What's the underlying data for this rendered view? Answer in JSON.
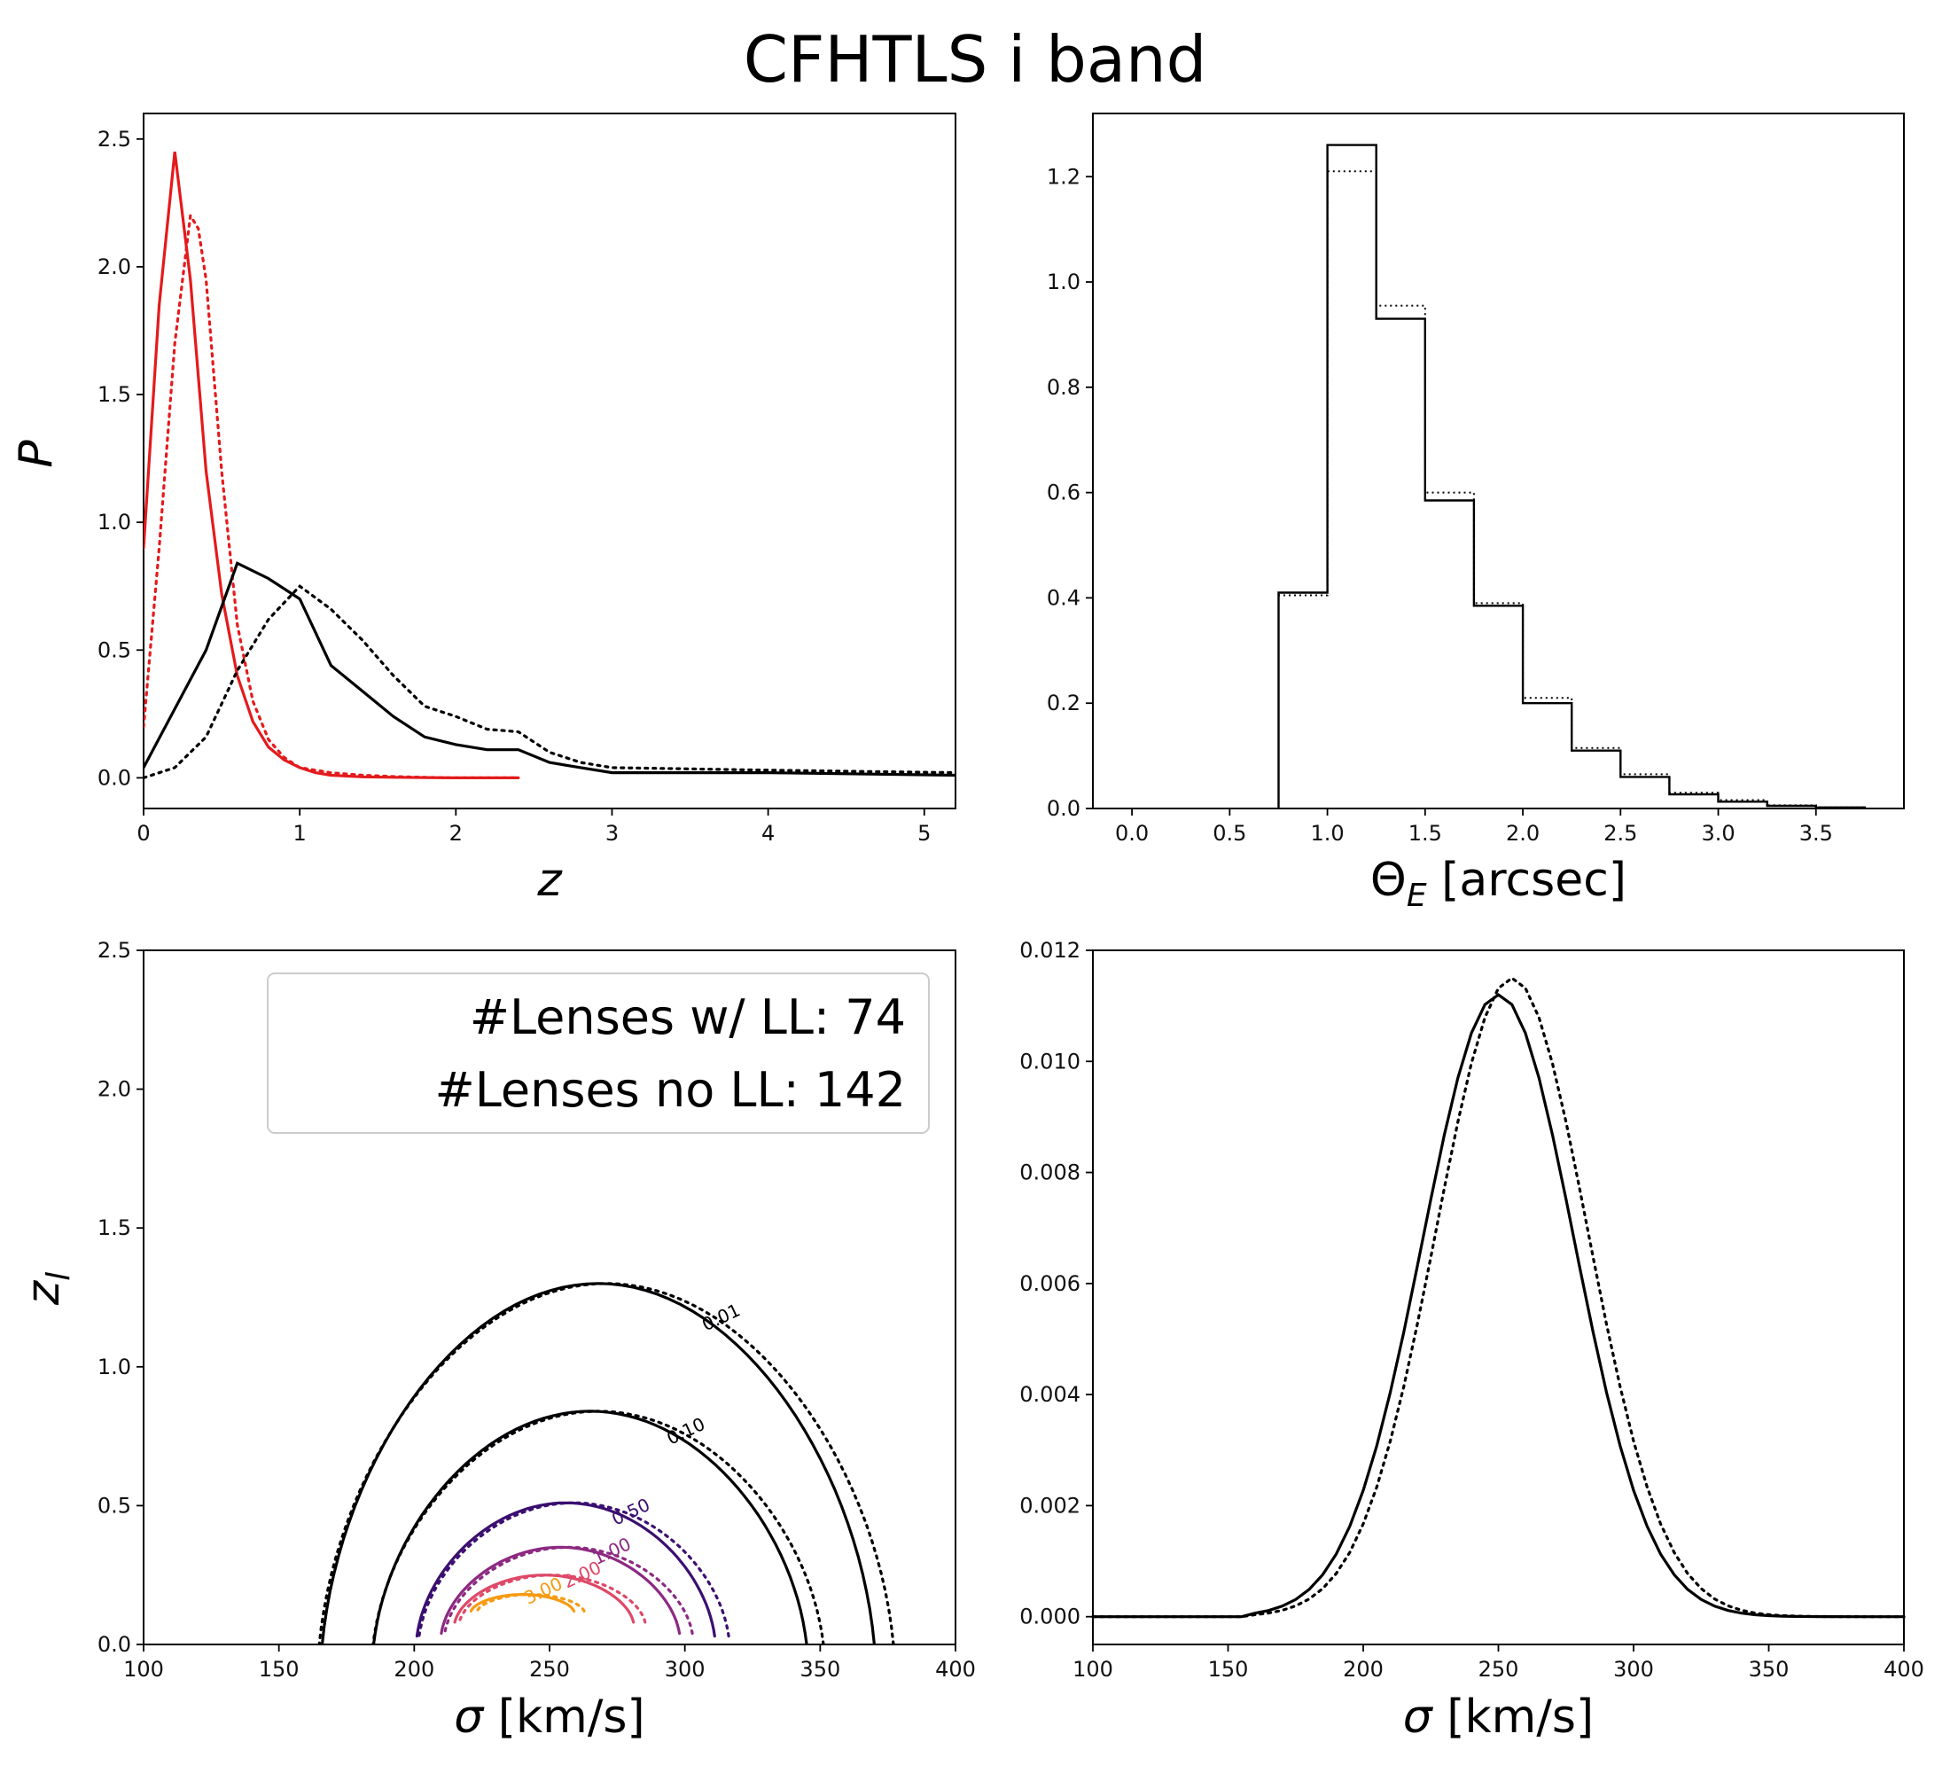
{
  "figure": {
    "title": "CFHTLS i band"
  },
  "chart_data": [
    {
      "type": "line",
      "panel": "top-left",
      "xlabel": "z",
      "ylabel": "P",
      "xlim": [
        0,
        5.2
      ],
      "ylim": [
        -0.12,
        2.6
      ],
      "xticks": [
        "0",
        "1",
        "2",
        "3",
        "4",
        "5"
      ],
      "yticks": [
        "0.0",
        "0.5",
        "1.0",
        "1.5",
        "2.0",
        "2.5"
      ],
      "series": [
        {
          "color": "#e41a1c",
          "style": "solid",
          "x": [
            0,
            0.1,
            0.2,
            0.3,
            0.4,
            0.5,
            0.6,
            0.7,
            0.8,
            0.9,
            1.0,
            1.1,
            1.2,
            1.4,
            1.6,
            1.8,
            2.0,
            2.2,
            2.4
          ],
          "y": [
            0.9,
            1.85,
            2.45,
            1.95,
            1.2,
            0.72,
            0.4,
            0.22,
            0.12,
            0.07,
            0.04,
            0.02,
            0.01,
            0.004,
            0.002,
            0.001,
            0,
            0,
            0
          ]
        },
        {
          "color": "#e41a1c",
          "style": "dotted",
          "x": [
            0,
            0.1,
            0.2,
            0.3,
            0.35,
            0.4,
            0.5,
            0.6,
            0.7,
            0.8,
            0.9,
            1.0,
            1.2,
            1.4,
            1.6,
            1.8,
            2.0,
            2.2,
            2.4
          ],
          "y": [
            0.2,
            0.9,
            1.7,
            2.2,
            2.15,
            1.95,
            1.2,
            0.6,
            0.3,
            0.15,
            0.08,
            0.04,
            0.02,
            0.01,
            0.005,
            0.002,
            0,
            0,
            0
          ]
        },
        {
          "color": "#000000",
          "style": "solid",
          "x": [
            0,
            0.2,
            0.4,
            0.6,
            0.8,
            1.0,
            1.2,
            1.4,
            1.6,
            1.8,
            2.0,
            2.2,
            2.4,
            2.6,
            2.8,
            3.0,
            4.0,
            5.2
          ],
          "y": [
            0.04,
            0.27,
            0.5,
            0.84,
            0.78,
            0.7,
            0.44,
            0.34,
            0.24,
            0.16,
            0.13,
            0.11,
            0.11,
            0.06,
            0.04,
            0.02,
            0.02,
            0.01
          ]
        },
        {
          "color": "#000000",
          "style": "dotted",
          "x": [
            0,
            0.2,
            0.4,
            0.6,
            0.8,
            1.0,
            1.2,
            1.4,
            1.6,
            1.8,
            2.0,
            2.2,
            2.4,
            2.6,
            2.8,
            3.0,
            4.0,
            5.2
          ],
          "y": [
            0.0,
            0.04,
            0.16,
            0.42,
            0.62,
            0.75,
            0.66,
            0.54,
            0.4,
            0.28,
            0.24,
            0.19,
            0.18,
            0.1,
            0.06,
            0.04,
            0.03,
            0.02
          ]
        }
      ]
    },
    {
      "type": "histogram",
      "panel": "top-right",
      "xlabel": "Θ_E [arcsec]",
      "ylabel": "",
      "xlim": [
        -0.2,
        3.95
      ],
      "ylim": [
        0,
        1.32
      ],
      "xticks": [
        "0.0",
        "0.5",
        "1.0",
        "1.5",
        "2.0",
        "2.5",
        "3.0",
        "3.5"
      ],
      "yticks": [
        "0.0",
        "0.2",
        "0.4",
        "0.6",
        "0.8",
        "1.0",
        "1.2"
      ],
      "bin_edges": [
        0.75,
        1.0,
        1.25,
        1.5,
        1.75,
        2.0,
        2.25,
        2.5,
        2.75,
        3.0,
        3.25,
        3.5,
        3.75
      ],
      "series": [
        {
          "style": "solid",
          "values": [
            0.41,
            1.26,
            0.93,
            0.585,
            0.385,
            0.2,
            0.11,
            0.06,
            0.027,
            0.013,
            0.005,
            0.002
          ]
        },
        {
          "style": "dotted",
          "values": [
            0.405,
            1.21,
            0.955,
            0.6,
            0.39,
            0.21,
            0.115,
            0.065,
            0.03,
            0.016,
            0.006,
            0.002
          ]
        }
      ]
    },
    {
      "type": "contour",
      "panel": "bottom-left",
      "xlabel": "σ [km/s]",
      "ylabel": "z_l",
      "xlim": [
        100,
        400
      ],
      "ylim": [
        0,
        2.5
      ],
      "xticks": [
        "100",
        "150",
        "200",
        "250",
        "300",
        "350",
        "400"
      ],
      "yticks": [
        "0.0",
        "0.5",
        "1.0",
        "1.5",
        "2.0",
        "2.5"
      ],
      "levels": [
        {
          "label": "0.01",
          "color": "#000004",
          "rs": 102,
          "rz": 1.3,
          "cs": 268,
          "cz": 0.12
        },
        {
          "label": "0.10",
          "color": "#000004",
          "rs": 80,
          "rz": 0.84,
          "cs": 265,
          "cz": 0.12
        },
        {
          "label": "0.50",
          "color": "#3b0f70",
          "rs": 55,
          "rz": 0.48,
          "cs": 256,
          "cz": 0.15
        },
        {
          "label": "1.00",
          "color": "#8c2981",
          "rs": 44,
          "rz": 0.31,
          "cs": 254,
          "cz": 0.16
        },
        {
          "label": "2.00",
          "color": "#de4968",
          "rs": 33,
          "rz": 0.17,
          "cs": 248,
          "cz": 0.2
        },
        {
          "label": "3.00",
          "color": "#f79a10",
          "rs": 19,
          "rz": 0.06,
          "cs": 240,
          "cz": 0.24
        }
      ],
      "legend_text": [
        "#Lenses w/ LL: 74",
        "#Lenses no LL: 142"
      ],
      "legend_position": "top-right"
    },
    {
      "type": "line",
      "panel": "bottom-right",
      "xlabel": "σ [km/s]",
      "ylabel": "",
      "xlim": [
        100,
        400
      ],
      "ylim": [
        -0.0005,
        0.012
      ],
      "xticks": [
        "100",
        "150",
        "200",
        "250",
        "300",
        "350",
        "400"
      ],
      "yticks": [
        "0.000",
        "0.002",
        "0.004",
        "0.006",
        "0.008",
        "0.010",
        "0.012"
      ],
      "series": [
        {
          "style": "solid",
          "mu": 250,
          "sigma": 28,
          "amp": 0.0112
        },
        {
          "style": "dotted",
          "mu": 255,
          "sigma": 28,
          "amp": 0.0115
        }
      ]
    }
  ]
}
